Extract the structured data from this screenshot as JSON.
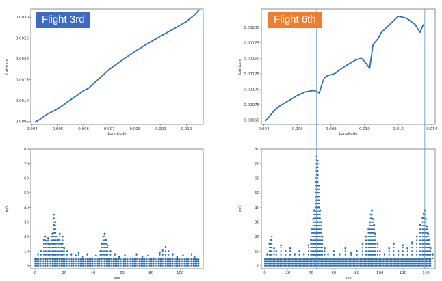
{
  "colors": {
    "line": "#2a6fb5",
    "badge_blue": "#3c6bc0",
    "badge_orange": "#ee7d31",
    "divider": "#6e9ad2"
  },
  "badges": {
    "left": "Flight 3rd",
    "right": "Flight 6th"
  },
  "chart_data": [
    {
      "type": "line",
      "panel": "top-left",
      "xlabel": "Longitude",
      "ylabel": "Latitude",
      "xlim": [
        0.00395,
        0.01065
      ],
      "ylim": [
        0.00043,
        0.0032
      ],
      "xticks": [
        "0.004",
        "0.005",
        "0.006",
        "0.007",
        "0.008",
        "0.009",
        "0.010"
      ],
      "xtick_values": [
        0.004,
        0.005,
        0.006,
        0.007,
        0.008,
        0.009,
        0.01
      ],
      "yticks": [
        "0.0005",
        "0.0010",
        "0.0015",
        "0.0020",
        "0.0025",
        "0.0030"
      ],
      "ytick_values": [
        0.0005,
        0.001,
        0.0015,
        0.002,
        0.0025,
        0.003
      ],
      "x": [
        0.0041,
        0.0043,
        0.0046,
        0.005,
        0.0054,
        0.0058,
        0.006,
        0.0062,
        0.0065,
        0.007,
        0.0075,
        0.008,
        0.0085,
        0.009,
        0.0095,
        0.01,
        0.0103,
        0.0105
      ],
      "y": [
        0.00048,
        0.00055,
        0.00068,
        0.0008,
        0.00098,
        0.00115,
        0.00124,
        0.0013,
        0.00147,
        0.00175,
        0.00197,
        0.00218,
        0.00237,
        0.00255,
        0.00272,
        0.0029,
        0.00305,
        0.00318
      ]
    },
    {
      "type": "line",
      "panel": "top-right",
      "xlabel": "Longitude",
      "ylabel": "Latitude",
      "xlim": [
        0.00385,
        0.0142
      ],
      "ylim": [
        0.00043,
        0.0023
      ],
      "xticks": [
        "0.004",
        "0.006",
        "0.008",
        "0.010",
        "0.012",
        "0.014"
      ],
      "xtick_values": [
        0.004,
        0.006,
        0.008,
        0.01,
        0.012,
        0.014
      ],
      "yticks": [
        "0.00050",
        "0.00075",
        "0.00100",
        "0.00125",
        "0.00150",
        "0.00175",
        "0.00200"
      ],
      "ytick_values": [
        0.0005,
        0.00075,
        0.001,
        0.00125,
        0.0015,
        0.00175,
        0.002
      ],
      "x": [
        0.0041,
        0.0043,
        0.0046,
        0.005,
        0.0055,
        0.006,
        0.0065,
        0.007,
        0.0073,
        0.0075,
        0.0076,
        0.0078,
        0.0082,
        0.0086,
        0.009,
        0.0095,
        0.0098,
        0.01,
        0.0103,
        0.0105,
        0.0108,
        0.011,
        0.0115,
        0.012,
        0.0125,
        0.013,
        0.0133,
        0.0135
      ],
      "y": [
        0.00049,
        0.00055,
        0.00065,
        0.00074,
        0.00082,
        0.0009,
        0.00096,
        0.00098,
        0.00094,
        0.00112,
        0.00118,
        0.00122,
        0.00125,
        0.00133,
        0.0014,
        0.00148,
        0.0015,
        0.00145,
        0.00134,
        0.00172,
        0.00182,
        0.00192,
        0.00205,
        0.00218,
        0.00215,
        0.00205,
        0.00192,
        0.00205
      ]
    },
    {
      "type": "scatter",
      "panel": "bottom-left",
      "xlabel": "sec",
      "ylabel": "m/s",
      "xlim": [
        -3,
        116
      ],
      "ylim": [
        -2,
        80
      ],
      "xticks": [
        "0",
        "20",
        "40",
        "60",
        "80",
        "100"
      ],
      "xtick_values": [
        0,
        20,
        40,
        60,
        80,
        100
      ],
      "yticks": [
        "0",
        "10",
        "20",
        "30",
        "40",
        "50",
        "60",
        "70",
        "80"
      ],
      "ytick_values": [
        0,
        10,
        20,
        30,
        40,
        50,
        60,
        70,
        80
      ],
      "points": [
        [
          0,
          5
        ],
        [
          2,
          8
        ],
        [
          4,
          10
        ],
        [
          6,
          18
        ],
        [
          7,
          20
        ],
        [
          8,
          17
        ],
        [
          9,
          19
        ],
        [
          10,
          15
        ],
        [
          11,
          20
        ],
        [
          12,
          22
        ],
        [
          13,
          28
        ],
        [
          13,
          35
        ],
        [
          14,
          30
        ],
        [
          14,
          25
        ],
        [
          15,
          20
        ],
        [
          16,
          18
        ],
        [
          17,
          22
        ],
        [
          18,
          15
        ],
        [
          19,
          20
        ],
        [
          20,
          12
        ],
        [
          22,
          10
        ],
        [
          25,
          8
        ],
        [
          28,
          7
        ],
        [
          30,
          9
        ],
        [
          33,
          6
        ],
        [
          36,
          8
        ],
        [
          39,
          5
        ],
        [
          42,
          7
        ],
        [
          45,
          10
        ],
        [
          46,
          15
        ],
        [
          47,
          20
        ],
        [
          48,
          22
        ],
        [
          49,
          18
        ],
        [
          50,
          14
        ],
        [
          52,
          10
        ],
        [
          55,
          8
        ],
        [
          58,
          6
        ],
        [
          62,
          7
        ],
        [
          66,
          5
        ],
        [
          70,
          8
        ],
        [
          74,
          6
        ],
        [
          78,
          7
        ],
        [
          82,
          5
        ],
        [
          86,
          9
        ],
        [
          88,
          11
        ],
        [
          90,
          13
        ],
        [
          92,
          10
        ],
        [
          95,
          8
        ],
        [
          98,
          6
        ],
        [
          102,
          7
        ],
        [
          105,
          5
        ],
        [
          108,
          8
        ],
        [
          110,
          6
        ],
        [
          112,
          4
        ]
      ]
    },
    {
      "type": "scatter",
      "panel": "bottom-right",
      "xlabel": "sec",
      "ylabel": "m/s",
      "xlim": [
        -3,
        148
      ],
      "ylim": [
        -2,
        80
      ],
      "xticks": [
        "0",
        "20",
        "40",
        "60",
        "80",
        "100",
        "120",
        "140"
      ],
      "xtick_values": [
        0,
        20,
        40,
        60,
        80,
        100,
        120,
        140
      ],
      "yticks": [
        "0",
        "10",
        "20",
        "30",
        "40",
        "50",
        "60",
        "70",
        "80"
      ],
      "ytick_values": [
        0,
        10,
        20,
        30,
        40,
        50,
        60,
        70,
        80
      ],
      "events": [
        45,
        93,
        139
      ],
      "points": [
        [
          2,
          8
        ],
        [
          4,
          15
        ],
        [
          5,
          18
        ],
        [
          6,
          20
        ],
        [
          8,
          12
        ],
        [
          10,
          10
        ],
        [
          14,
          14
        ],
        [
          18,
          10
        ],
        [
          22,
          12
        ],
        [
          26,
          8
        ],
        [
          30,
          10
        ],
        [
          34,
          8
        ],
        [
          38,
          14
        ],
        [
          40,
          18
        ],
        [
          41,
          25
        ],
        [
          42,
          32
        ],
        [
          43,
          38
        ],
        [
          44,
          50
        ],
        [
          44,
          60
        ],
        [
          45,
          65
        ],
        [
          45,
          70
        ],
        [
          45,
          75
        ],
        [
          46,
          72
        ],
        [
          46,
          62
        ],
        [
          47,
          55
        ],
        [
          47,
          45
        ],
        [
          48,
          38
        ],
        [
          49,
          30
        ],
        [
          50,
          20
        ],
        [
          52,
          12
        ],
        [
          55,
          8
        ],
        [
          60,
          10
        ],
        [
          65,
          8
        ],
        [
          70,
          12
        ],
        [
          75,
          9
        ],
        [
          80,
          10
        ],
        [
          85,
          15
        ],
        [
          88,
          20
        ],
        [
          90,
          25
        ],
        [
          91,
          30
        ],
        [
          92,
          35
        ],
        [
          93,
          38
        ],
        [
          94,
          32
        ],
        [
          95,
          28
        ],
        [
          96,
          22
        ],
        [
          98,
          15
        ],
        [
          100,
          10
        ],
        [
          104,
          8
        ],
        [
          108,
          12
        ],
        [
          112,
          15
        ],
        [
          116,
          10
        ],
        [
          120,
          14
        ],
        [
          124,
          12
        ],
        [
          128,
          16
        ],
        [
          132,
          20
        ],
        [
          135,
          28
        ],
        [
          137,
          33
        ],
        [
          138,
          36
        ],
        [
          139,
          38
        ],
        [
          140,
          32
        ],
        [
          141,
          27
        ],
        [
          142,
          22
        ],
        [
          143,
          18
        ],
        [
          144,
          12
        ],
        [
          146,
          8
        ]
      ]
    }
  ]
}
